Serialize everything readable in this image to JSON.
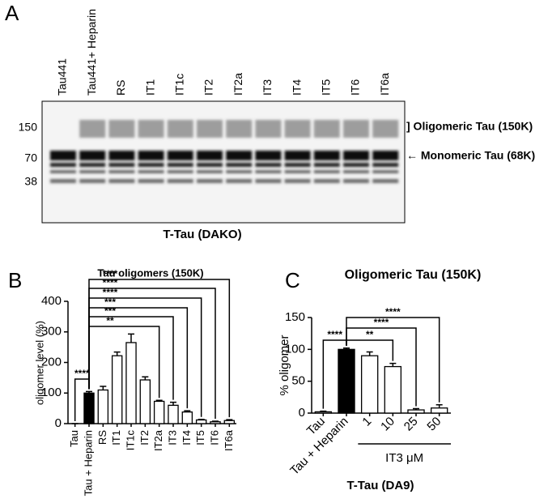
{
  "blot": {
    "panel": "A",
    "lanes": [
      "Tau441",
      "Tau441+ Heparin",
      "RS",
      "IT1",
      "IT1c",
      "IT2",
      "IT2a",
      "IT3",
      "IT4",
      "IT5",
      "IT6",
      "IT6a"
    ],
    "markers": [
      "150",
      "70",
      "38"
    ],
    "annotations": [
      "] Oligomeric Tau (150K)",
      "← Monomeric Tau (68K)"
    ],
    "caption": "T-Tau  (DAKO)"
  },
  "chart_data": [
    {
      "type": "bar",
      "panel": "B",
      "title": "Tau oligomers (150K)",
      "y_label": "oligomer level (%)",
      "categories": [
        "Tau",
        "Tau + Heparin",
        "RS",
        "IT1",
        "IT1c",
        "IT2",
        "IT2a",
        "IT3",
        "IT4",
        "IT5",
        "IT6",
        "IT6a"
      ],
      "values": [
        0,
        100,
        110,
        222,
        265,
        143,
        73,
        60,
        38,
        12,
        6,
        10
      ],
      "errors": [
        0,
        5,
        12,
        12,
        28,
        10,
        3,
        10,
        4,
        2,
        2,
        3
      ],
      "colors": [
        "#ffffff",
        "#000000",
        "#ffffff",
        "#ffffff",
        "#ffffff",
        "#ffffff",
        "#ffffff",
        "#ffffff",
        "#ffffff",
        "#ffffff",
        "#ffffff",
        "#ffffff"
      ],
      "ylim": [
        0,
        400
      ],
      "yticks": [
        0,
        100,
        200,
        300,
        400
      ],
      "annotations": [
        {
          "label": "****",
          "from": "Tau",
          "to": "Tau + Heparin"
        },
        {
          "label": "**",
          "from": "Tau + Heparin",
          "to": "IT2a"
        },
        {
          "label": "***",
          "from": "Tau + Heparin",
          "to": "IT3"
        },
        {
          "label": "***",
          "from": "Tau + Heparin",
          "to": "IT4"
        },
        {
          "label": "****",
          "from": "Tau + Heparin",
          "to": "IT5"
        },
        {
          "label": "****",
          "from": "Tau + Heparin",
          "to": "IT6"
        },
        {
          "label": "****",
          "from": "Tau + Heparin",
          "to": "IT6a"
        }
      ]
    },
    {
      "type": "bar",
      "panel": "C",
      "title": "Oligomeric Tau (150K)",
      "y_label": "% oligomer",
      "categories": [
        "Tau",
        "Tau + Heparin",
        "1",
        "10",
        "25",
        "50"
      ],
      "values": [
        2,
        100,
        90,
        73,
        5,
        8
      ],
      "errors": [
        1,
        2,
        6,
        5,
        2,
        5
      ],
      "colors": [
        "#ffffff",
        "#000000",
        "#ffffff",
        "#ffffff",
        "#ffffff",
        "#ffffff"
      ],
      "ylim": [
        0,
        150
      ],
      "yticks": [
        0,
        50,
        100,
        150
      ],
      "group_label": "IT3 μM",
      "caption": "T-Tau  (DA9)",
      "annotations": [
        {
          "label": "****",
          "from": "Tau",
          "to": "Tau + Heparin"
        },
        {
          "label": "**",
          "from": "Tau + Heparin",
          "to": "10"
        },
        {
          "label": "****",
          "from": "Tau + Heparin",
          "to": "25"
        },
        {
          "label": "****",
          "from": "Tau + Heparin",
          "to": "50"
        }
      ]
    }
  ]
}
